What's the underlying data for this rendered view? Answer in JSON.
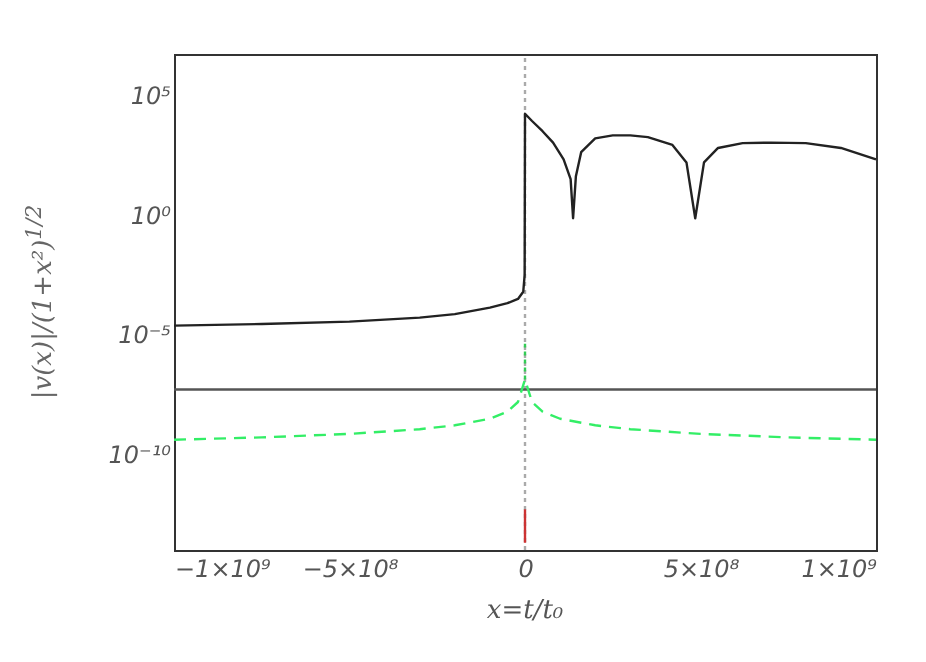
{
  "chart_data": {
    "type": "line",
    "xlabel": "x=t/t₀",
    "ylabel": "|v(x)|/(1+x²)$^{1/2}$",
    "log": "y",
    "xlim": [
      -1000000000.0,
      1000000000.0
    ],
    "xticks": [
      {
        "value": -1000000000.0,
        "label": "−1×10⁹"
      },
      {
        "value": -500000000.0,
        "label": "−5×10⁸"
      },
      0,
      {
        "value": 500000000.0,
        "label": "5×10⁸"
      },
      {
        "value": 1000000000.0,
        "label": "1×10⁹"
      }
    ],
    "ylim": [
      1e-14,
      5000000.0
    ],
    "yticks": [
      {
        "value": 1e-10,
        "label": "10⁻¹⁰"
      },
      {
        "value": 1e-05,
        "label": "10⁻⁵"
      },
      {
        "value": 1,
        "label": "10⁰"
      },
      {
        "value": 100000.0,
        "label": "10⁵"
      }
    ],
    "grid": false,
    "series": [
      {
        "color": "#aaaaaa",
        "line_style": "dotted",
        "x": [
          0,
          0
        ],
        "values": [
          1e-14,
          5000000.0
        ]
      },
      {
        "color": "#555555",
        "line_style": "solid",
        "x": [
          -1000000000.0,
          1000000000.0
        ],
        "values": [
          5e-08,
          5e-08
        ]
      },
      {
        "color": "#222222",
        "line_style": "solid",
        "x": [
          -1000000000.0,
          -750000000.0,
          -500000000.0,
          -300000000.0,
          -200000000.0,
          -100000000.0,
          -50000000.0,
          -20000000.0,
          -5000000.0,
          -1000000.0,
          0,
          20000000.0,
          50000000.0,
          80000000.0,
          110000000.0,
          130000000.0,
          137000000.0,
          145000000.0,
          160000000.0,
          200000000.0,
          250000000.0,
          300000000.0,
          350000000.0,
          420000000.0,
          460000000.0,
          485000000.0,
          510000000.0,
          550000000.0,
          620000000.0,
          700000000.0,
          800000000.0,
          900000000.0,
          1000000000.0
        ],
        "values": [
          2.3e-05,
          2.7e-05,
          3.4e-05,
          5e-05,
          7e-05,
          0.00013,
          0.0002,
          0.0003,
          0.0006,
          0.003,
          16000.0,
          8000,
          3000,
          1000,
          200,
          30,
          0.7,
          40,
          400,
          1500,
          2000,
          2000,
          1700,
          800,
          150,
          0.7,
          150,
          600,
          950,
          1000,
          950,
          600,
          200
        ]
      },
      {
        "color": "#33ee66",
        "line_style": "dashed",
        "x": [
          -1000000000.0,
          -750000000.0,
          -500000000.0,
          -300000000.0,
          -200000000.0,
          -100000000.0,
          -50000000.0,
          -20000000.0,
          0,
          20000000.0,
          50000000.0,
          100000000.0,
          200000000.0,
          300000000.0,
          500000000.0,
          750000000.0,
          1000000000.0
        ],
        "values": [
          4e-10,
          5e-10,
          7e-10,
          1.1e-09,
          1.6e-09,
          3e-09,
          6e-09,
          1.5e-08,
          1.3e-07,
          1.5e-08,
          6e-09,
          3e-09,
          1.6e-09,
          1.1e-09,
          7e-10,
          5e-10,
          4e-10
        ]
      },
      {
        "color": "#cc3333",
        "line_style": "solid",
        "x": [
          0,
          0
        ],
        "values": [
          2e-14,
          5e-13
        ]
      },
      {
        "color": "#33cc55",
        "line_style": "dotted",
        "x": [
          0,
          0
        ],
        "values": [
          1.3e-07,
          4e-06
        ]
      }
    ]
  }
}
